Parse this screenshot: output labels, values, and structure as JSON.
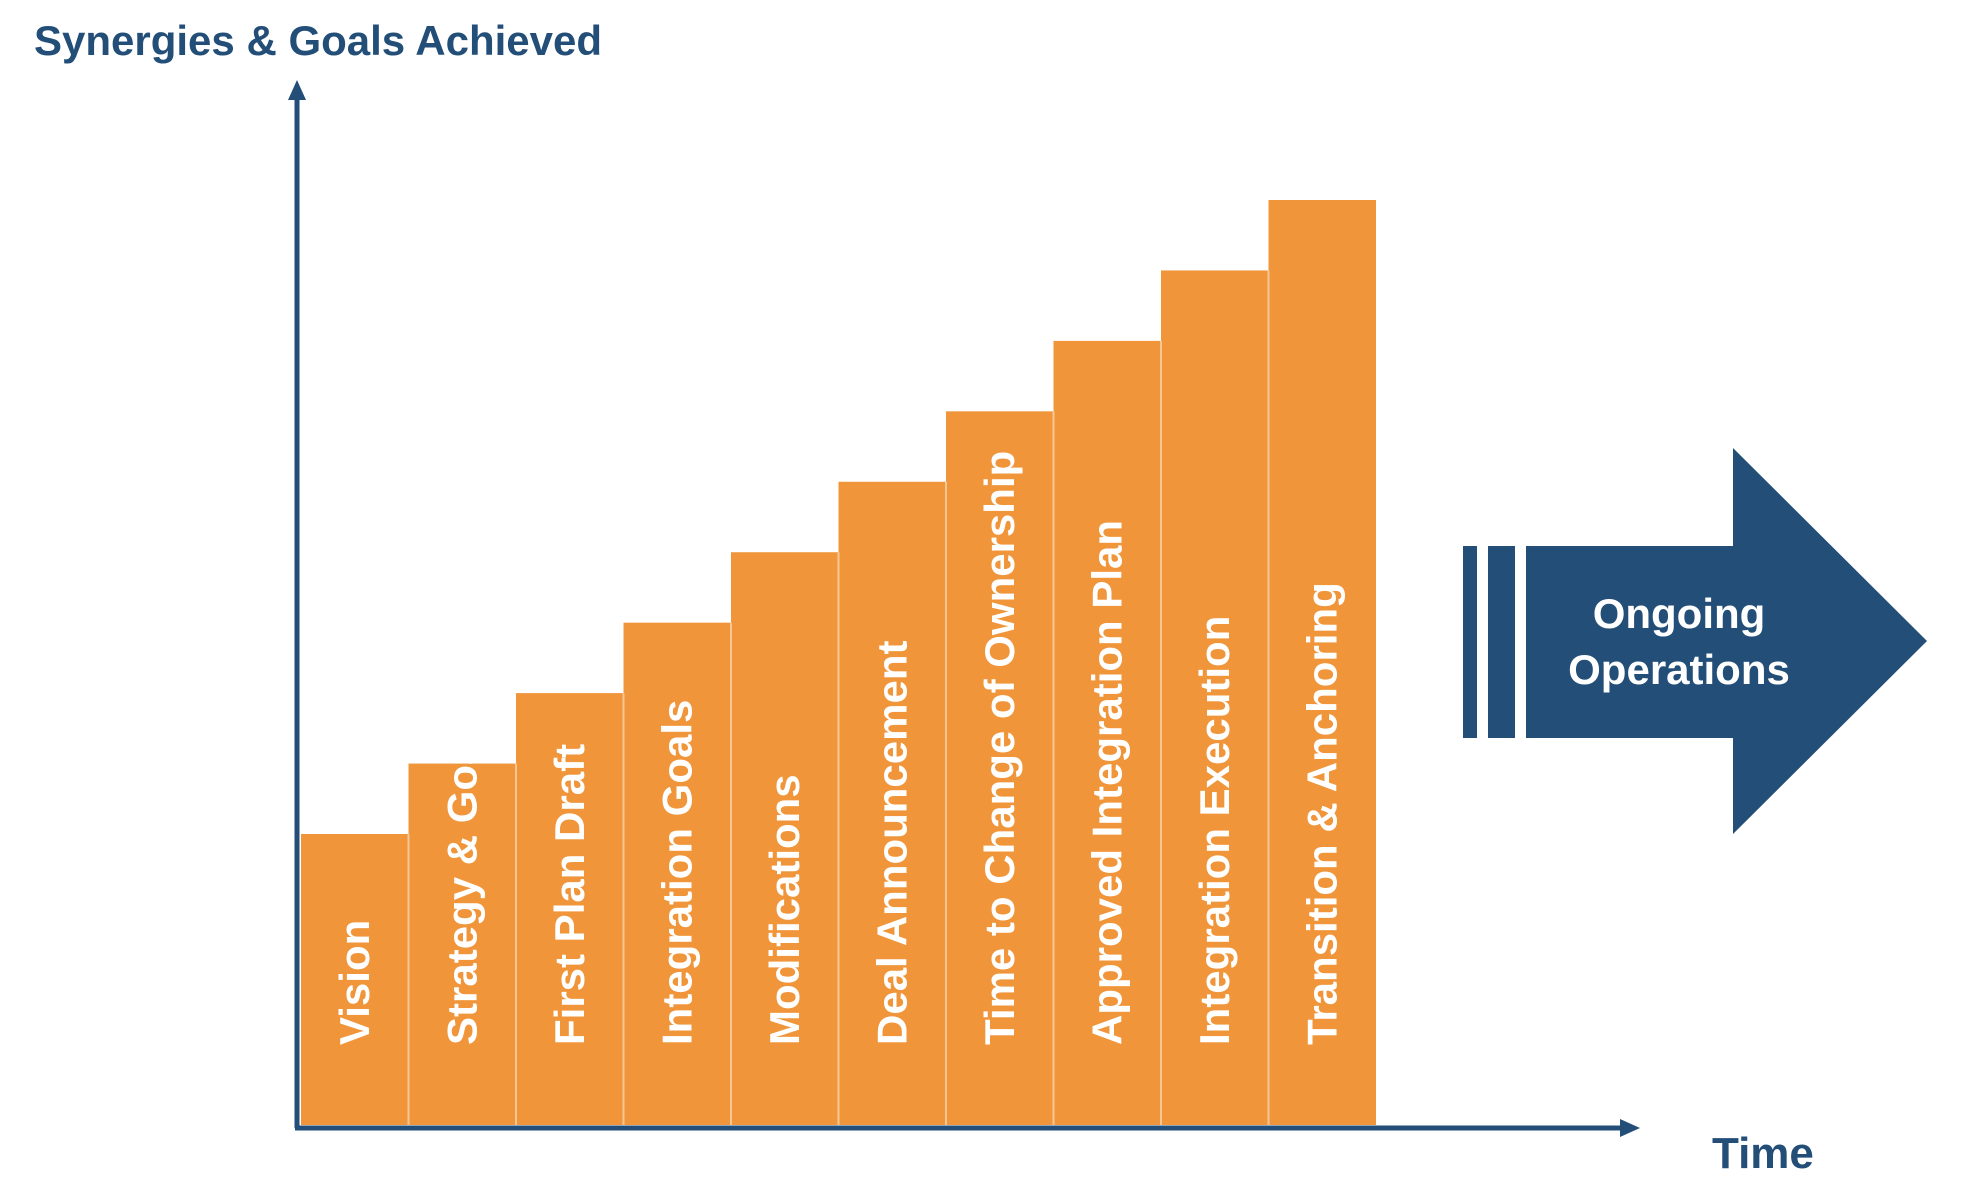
{
  "chart_data": {
    "type": "bar",
    "title": "",
    "ylabel": "Synergies & Goals Achieved",
    "xlabel": "Time",
    "categories": [
      "Vision",
      "Strategy & Goals",
      "First Plan Draft",
      "Integration Goals",
      "Modifications",
      "Deal Announcement",
      "Time to Change of Ownership",
      "Approved Integration Plan",
      "Integration Execution",
      "Transition & Anchoring"
    ],
    "values": [
      1,
      2,
      3,
      4,
      5,
      6,
      7,
      8,
      9,
      10
    ],
    "grid": false,
    "bar_color": "#f0953a",
    "axis_color": "#234e78"
  },
  "arrow": {
    "line1": "Ongoing",
    "line2": "Operations",
    "color": "#234e78"
  }
}
